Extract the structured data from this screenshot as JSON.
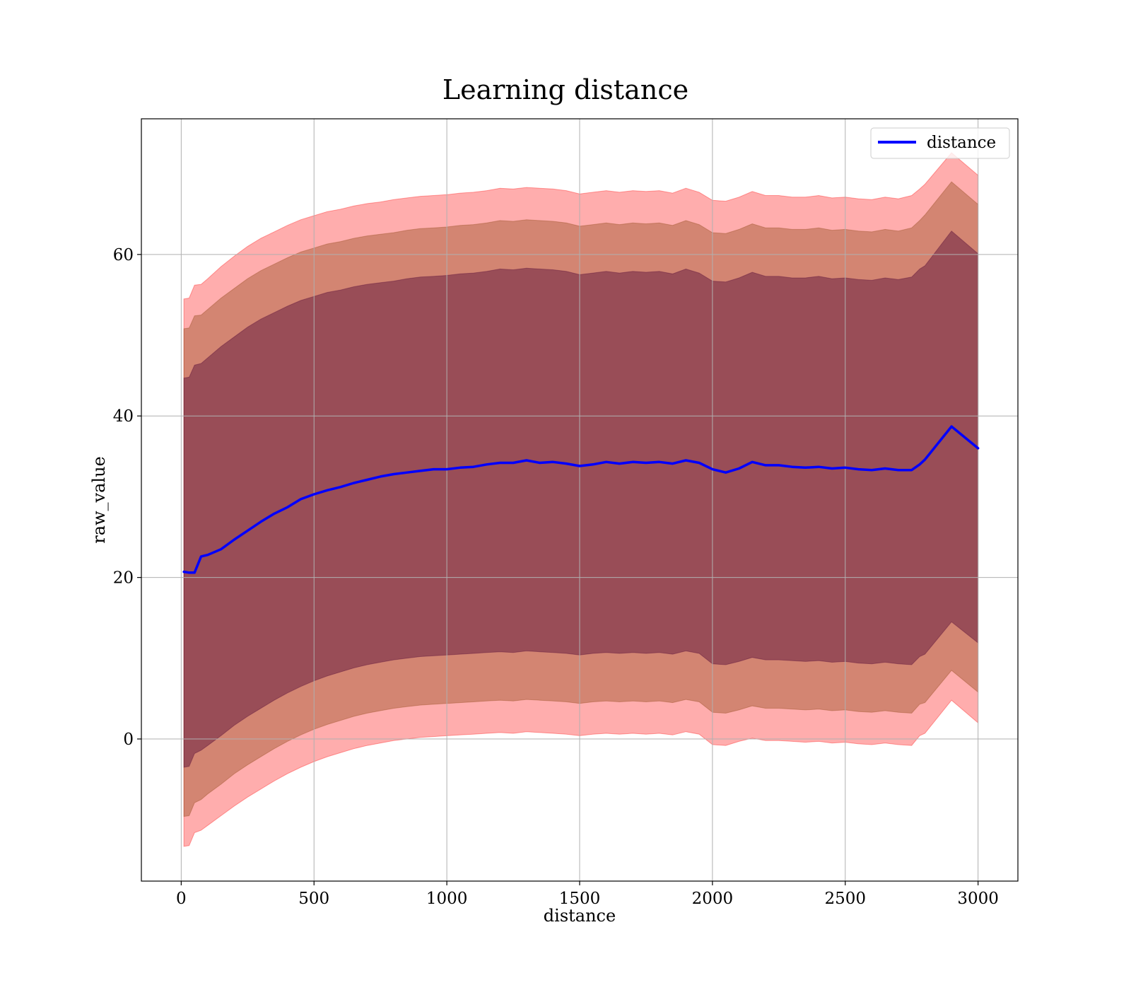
{
  "chart_data": {
    "type": "area",
    "title": "Learning distance",
    "xlabel": "distance",
    "ylabel": "raw_value",
    "xlim": [
      -150,
      3150
    ],
    "ylim": [
      -17.6,
      76.8
    ],
    "x_ticks": [
      0,
      500,
      1000,
      1500,
      2000,
      2500,
      3000
    ],
    "x_tick_labels": [
      "0",
      "500",
      "1000",
      "1500",
      "2000",
      "2500",
      "3000"
    ],
    "y_ticks": [
      0,
      20,
      40,
      60
    ],
    "y_tick_labels": [
      "0",
      "20",
      "40",
      "60"
    ],
    "grid": true,
    "legend": {
      "position": "top-right",
      "entries": [
        "distance"
      ]
    },
    "colors": {
      "line": "#0000ff",
      "band_outer": "#ff0000",
      "band_middle": "#8b4513",
      "band_inner": "#4b0033",
      "grid": "#b0b0b0"
    },
    "x": [
      10,
      30,
      50,
      75,
      100,
      150,
      200,
      250,
      300,
      350,
      400,
      450,
      500,
      550,
      600,
      650,
      700,
      750,
      800,
      850,
      900,
      950,
      1000,
      1050,
      1100,
      1150,
      1200,
      1250,
      1300,
      1350,
      1400,
      1450,
      1500,
      1550,
      1600,
      1650,
      1700,
      1750,
      1800,
      1850,
      1900,
      1950,
      2000,
      2050,
      2100,
      2150,
      2200,
      2250,
      2300,
      2350,
      2400,
      2450,
      2500,
      2550,
      2600,
      2650,
      2700,
      2750,
      2780,
      2800,
      2900,
      3000
    ],
    "series": [
      {
        "name": "distance",
        "values": [
          20.7,
          20.6,
          20.6,
          22.6,
          22.8,
          23.5,
          24.7,
          25.8,
          26.9,
          27.9,
          28.7,
          29.7,
          30.3,
          30.8,
          31.2,
          31.7,
          32.1,
          32.5,
          32.8,
          33.0,
          33.2,
          33.4,
          33.4,
          33.6,
          33.7,
          34.0,
          34.2,
          34.2,
          34.5,
          34.2,
          34.3,
          34.1,
          33.8,
          34.0,
          34.3,
          34.1,
          34.3,
          34.2,
          34.3,
          34.1,
          34.5,
          34.2,
          33.4,
          33.0,
          33.5,
          34.3,
          33.9,
          33.9,
          33.7,
          33.6,
          33.7,
          33.5,
          33.6,
          33.4,
          33.3,
          33.5,
          33.3,
          33.3,
          34.0,
          34.6,
          38.7,
          36.0
        ]
      }
    ],
    "bands": [
      {
        "upper": [
          54.5,
          54.6,
          56.2,
          56.3,
          57.0,
          58.5,
          59.8,
          61.0,
          62.0,
          62.8,
          63.6,
          64.3,
          64.8,
          65.3,
          65.6,
          66.0,
          66.3,
          66.5,
          66.8,
          67.0,
          67.2,
          67.3,
          67.4,
          67.6,
          67.7,
          67.9,
          68.2,
          68.1,
          68.3,
          68.2,
          68.1,
          67.9,
          67.5,
          67.7,
          67.9,
          67.7,
          67.9,
          67.8,
          67.9,
          67.6,
          68.2,
          67.7,
          66.7,
          66.6,
          67.1,
          67.8,
          67.3,
          67.3,
          67.1,
          67.1,
          67.3,
          67.0,
          67.1,
          66.9,
          66.8,
          67.1,
          66.9,
          67.3,
          68.1,
          68.7,
          72.6,
          69.8
        ],
        "lower": [
          -13.3,
          -13.2,
          -11.6,
          -11.3,
          -10.7,
          -9.5,
          -8.3,
          -7.2,
          -6.2,
          -5.2,
          -4.3,
          -3.5,
          -2.8,
          -2.2,
          -1.7,
          -1.2,
          -0.8,
          -0.5,
          -0.2,
          0.0,
          0.2,
          0.3,
          0.4,
          0.5,
          0.6,
          0.7,
          0.8,
          0.7,
          0.9,
          0.8,
          0.7,
          0.6,
          0.4,
          0.6,
          0.7,
          0.6,
          0.7,
          0.6,
          0.7,
          0.5,
          0.9,
          0.6,
          -0.7,
          -0.8,
          -0.3,
          0.1,
          -0.2,
          -0.2,
          -0.3,
          -0.4,
          -0.3,
          -0.5,
          -0.4,
          -0.6,
          -0.7,
          -0.5,
          -0.7,
          -0.8,
          0.4,
          0.7,
          4.8,
          2.0
        ]
      },
      {
        "upper": [
          50.8,
          50.9,
          52.4,
          52.5,
          53.2,
          54.6,
          55.8,
          57.0,
          58.0,
          58.8,
          59.6,
          60.3,
          60.8,
          61.3,
          61.6,
          62.0,
          62.3,
          62.5,
          62.7,
          63.0,
          63.2,
          63.3,
          63.4,
          63.6,
          63.7,
          63.9,
          64.2,
          64.1,
          64.3,
          64.2,
          64.1,
          63.9,
          63.5,
          63.7,
          63.9,
          63.7,
          63.9,
          63.8,
          63.9,
          63.6,
          64.2,
          63.7,
          62.7,
          62.6,
          63.1,
          63.8,
          63.3,
          63.3,
          63.1,
          63.1,
          63.3,
          63.0,
          63.1,
          62.9,
          62.8,
          63.1,
          62.9,
          63.3,
          64.2,
          64.9,
          69.0,
          66.2
        ],
        "lower": [
          -9.6,
          -9.5,
          -7.9,
          -7.5,
          -6.8,
          -5.6,
          -4.3,
          -3.2,
          -2.2,
          -1.2,
          -0.3,
          0.5,
          1.2,
          1.8,
          2.3,
          2.8,
          3.2,
          3.5,
          3.8,
          4.0,
          4.2,
          4.3,
          4.4,
          4.5,
          4.6,
          4.7,
          4.8,
          4.7,
          4.9,
          4.8,
          4.7,
          4.6,
          4.4,
          4.6,
          4.7,
          4.6,
          4.7,
          4.6,
          4.7,
          4.5,
          4.9,
          4.6,
          3.3,
          3.2,
          3.6,
          4.1,
          3.8,
          3.8,
          3.7,
          3.6,
          3.7,
          3.5,
          3.6,
          3.4,
          3.3,
          3.5,
          3.3,
          3.2,
          4.3,
          4.5,
          8.5,
          5.8
        ]
      },
      {
        "upper": [
          44.7,
          44.8,
          46.3,
          46.5,
          47.2,
          48.6,
          49.8,
          51.0,
          52.0,
          52.8,
          53.6,
          54.3,
          54.8,
          55.3,
          55.6,
          56.0,
          56.3,
          56.5,
          56.7,
          57.0,
          57.2,
          57.3,
          57.4,
          57.6,
          57.7,
          57.9,
          58.2,
          58.1,
          58.3,
          58.2,
          58.1,
          57.9,
          57.5,
          57.7,
          57.9,
          57.7,
          57.9,
          57.8,
          57.9,
          57.6,
          58.2,
          57.7,
          56.7,
          56.6,
          57.1,
          57.8,
          57.3,
          57.3,
          57.1,
          57.1,
          57.3,
          57.0,
          57.1,
          56.9,
          56.8,
          57.1,
          56.9,
          57.2,
          58.2,
          58.6,
          62.9,
          60.1
        ],
        "lower": [
          -3.5,
          -3.4,
          -1.8,
          -1.4,
          -0.8,
          0.4,
          1.7,
          2.8,
          3.8,
          4.8,
          5.7,
          6.5,
          7.2,
          7.8,
          8.3,
          8.8,
          9.2,
          9.5,
          9.8,
          10.0,
          10.2,
          10.3,
          10.4,
          10.5,
          10.6,
          10.7,
          10.8,
          10.7,
          10.9,
          10.8,
          10.7,
          10.6,
          10.4,
          10.6,
          10.7,
          10.6,
          10.7,
          10.6,
          10.7,
          10.5,
          10.9,
          10.6,
          9.3,
          9.2,
          9.6,
          10.1,
          9.8,
          9.8,
          9.7,
          9.6,
          9.7,
          9.5,
          9.6,
          9.4,
          9.3,
          9.5,
          9.3,
          9.2,
          10.2,
          10.5,
          14.5,
          11.9
        ]
      }
    ]
  }
}
